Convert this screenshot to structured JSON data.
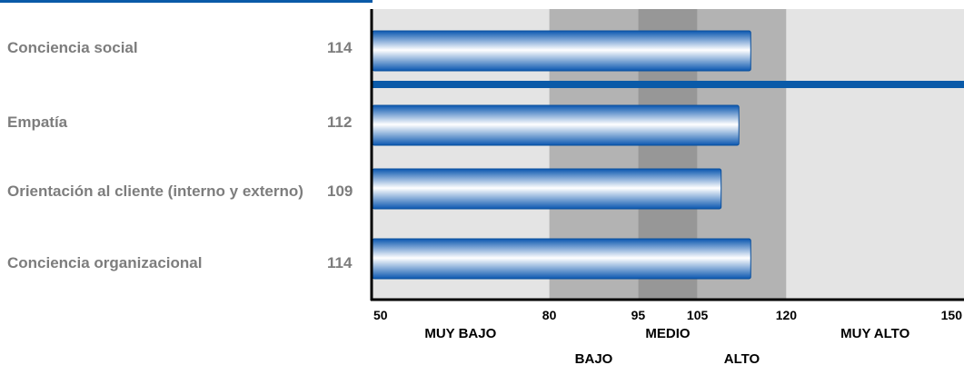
{
  "colors": {
    "accent": "#0a5aa8",
    "bar_edge": "#0b57b0",
    "bar_light": "#ffffff",
    "zone_muy_bajo": "#e4e4e4",
    "zone_bajo": "#b3b3b3",
    "zone_medio": "#979797",
    "zone_alto": "#b3b3b3",
    "zone_muy_alto": "#e4e4e4",
    "label_text": "#7d7d7d"
  },
  "chart_data": {
    "type": "bar",
    "orientation": "horizontal",
    "categories": [
      "Conciencia social",
      "Empatía",
      "Orientación al cliente (interno y externo)",
      "Conciencia organizacional"
    ],
    "values": [
      114,
      112,
      109,
      114
    ],
    "value_labels": [
      "114",
      "112",
      "109",
      "114"
    ],
    "xlim": [
      50,
      150
    ],
    "x_ticks": [
      50,
      80,
      95,
      105,
      120,
      150
    ],
    "x_tick_labels": [
      "50",
      "80",
      "95",
      "105",
      "120",
      "150"
    ],
    "zones": [
      {
        "label": "MUY BAJO",
        "from": 50,
        "to": 80,
        "color": "#e4e4e4"
      },
      {
        "label": "BAJO",
        "from": 80,
        "to": 95,
        "color": "#b3b3b3"
      },
      {
        "label": "MEDIO",
        "from": 95,
        "to": 105,
        "color": "#979797"
      },
      {
        "label": "ALTO",
        "from": 105,
        "to": 120,
        "color": "#b3b3b3"
      },
      {
        "label": "MUY ALTO",
        "from": 120,
        "to": 150,
        "color": "#e4e4e4"
      }
    ],
    "separator_after_category": 0,
    "grid": false
  }
}
